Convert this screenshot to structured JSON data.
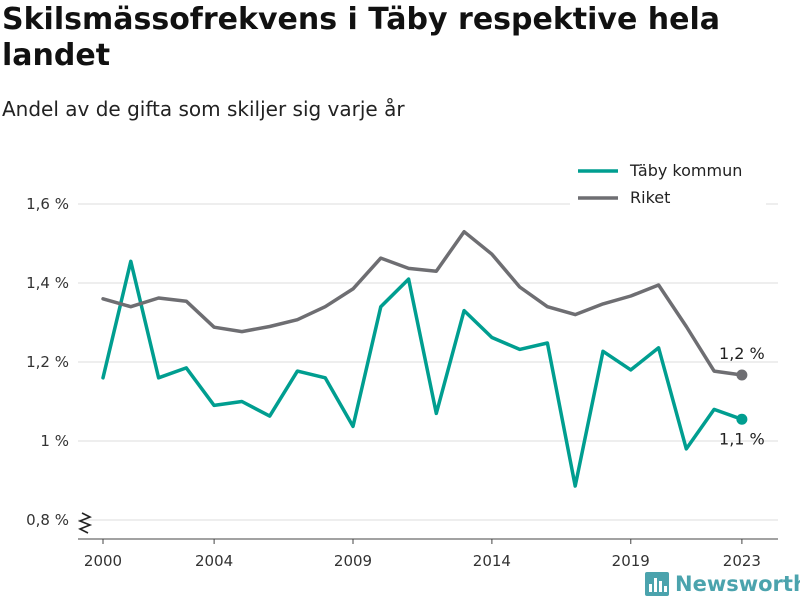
{
  "chart_data": {
    "type": "line",
    "title": "Skilsmässofrekvens i Täby respektive hela landet",
    "subtitle": "Andel av de gifta som skiljer sig varje år",
    "x": [
      2000,
      2001,
      2002,
      2003,
      2004,
      2005,
      2006,
      2007,
      2008,
      2009,
      2010,
      2011,
      2012,
      2013,
      2014,
      2015,
      2016,
      2017,
      2018,
      2019,
      2020,
      2021,
      2022,
      2023
    ],
    "series": [
      {
        "name": "Täby kommun",
        "color": "#009e90",
        "values": [
          1.16,
          1.455,
          1.16,
          1.185,
          1.09,
          1.1,
          1.063,
          1.177,
          1.16,
          1.037,
          1.34,
          1.41,
          1.07,
          1.33,
          1.262,
          1.232,
          1.248,
          0.886,
          1.227,
          1.18,
          1.236,
          0.98,
          1.08,
          1.055
        ],
        "end_label": "1,1 %"
      },
      {
        "name": "Riket",
        "color": "#6e6e72",
        "values": [
          1.36,
          1.34,
          1.362,
          1.354,
          1.288,
          1.277,
          1.29,
          1.307,
          1.34,
          1.385,
          1.463,
          1.437,
          1.43,
          1.53,
          1.473,
          1.39,
          1.34,
          1.32,
          1.347,
          1.367,
          1.395,
          1.29,
          1.177,
          1.167
        ],
        "end_label": "1,2 %"
      }
    ],
    "y_ticks": [
      {
        "value": 0.8,
        "label": "0,8 %"
      },
      {
        "value": 1.0,
        "label": "1 %"
      },
      {
        "value": 1.2,
        "label": "1,2 %"
      },
      {
        "value": 1.4,
        "label": "1,4 %"
      },
      {
        "value": 1.6,
        "label": "1,6 %"
      }
    ],
    "x_ticks": [
      2000,
      2004,
      2009,
      2014,
      2019,
      2023
    ],
    "xlim": [
      1999.1,
      2024.3
    ],
    "ylim": [
      0.8,
      1.6
    ],
    "grid": true,
    "legend_position": "top-right",
    "y_axis_break": true
  },
  "brand": {
    "name": "Newsworthy",
    "icon": "bar-chart-logo-icon"
  }
}
